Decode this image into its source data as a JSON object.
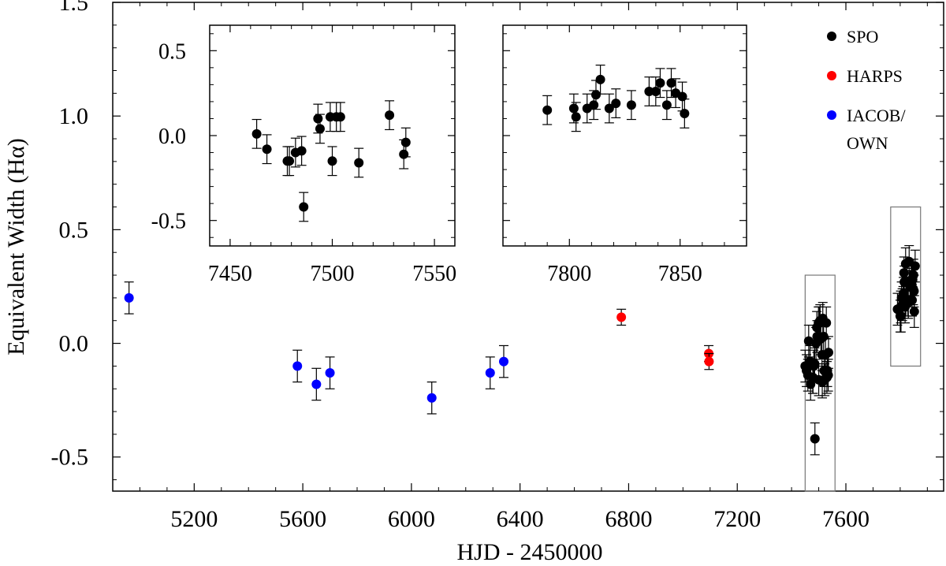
{
  "chart_data": [
    {
      "id": "main",
      "type": "scatter",
      "xlabel": "HJD - 2450000",
      "ylabel": "Equivalent Width (Hα)",
      "xlim": [
        4900,
        7960
      ],
      "ylim": [
        -0.65,
        1.5
      ],
      "xticks": [
        5200,
        5600,
        6000,
        6400,
        6800,
        7200,
        7600
      ],
      "yticks": [
        -0.5,
        0.0,
        0.5,
        1.0,
        1.5
      ],
      "ytick_labels": [
        "-0.5",
        "0.0",
        "0.5",
        "1.0",
        "1.5"
      ],
      "grid": false,
      "legend": {
        "position": "top-right",
        "entries": [
          {
            "label": "SPO",
            "color": "#000000"
          },
          {
            "label": "HARPS",
            "color": "#ff0000"
          },
          {
            "label": "IACOB/\nOWN",
            "color": "#0000ff"
          }
        ]
      },
      "series": [
        {
          "name": "SPO",
          "color": "#000000",
          "x": [
            7463,
            7468,
            7478,
            7479,
            7482,
            7485,
            7486,
            7493,
            7494,
            7499,
            7500,
            7502,
            7504,
            7513,
            7528,
            7535,
            7536,
            7450,
            7455,
            7460,
            7505,
            7508,
            7512,
            7515,
            7520,
            7525,
            7530,
            7470,
            7490,
            7518,
            7522,
            7532,
            7790,
            7802,
            7803,
            7808,
            7811,
            7812,
            7814,
            7818,
            7821,
            7828,
            7836,
            7839,
            7841,
            7844,
            7846,
            7848,
            7851,
            7852,
            7800,
            7805,
            7815,
            7820,
            7825,
            7830,
            7833,
            7842,
            7849,
            7855
          ],
          "y": [
            0.01,
            -0.08,
            -0.15,
            -0.15,
            -0.1,
            -0.09,
            -0.42,
            0.07,
            0.03,
            0.09,
            -0.16,
            0.09,
            0.09,
            -0.17,
            0.09,
            -0.14,
            -0.04,
            -0.1,
            -0.12,
            -0.14,
            0.1,
            0.02,
            -0.05,
            0.11,
            -0.12,
            -0.05,
            -0.15,
            -0.18,
            0.0,
            0.03,
            -0.16,
            -0.12,
            0.15,
            0.16,
            0.12,
            0.17,
            0.18,
            0.22,
            0.31,
            0.16,
            0.19,
            0.19,
            0.25,
            0.25,
            0.28,
            0.19,
            0.28,
            0.24,
            0.23,
            0.14,
            0.12,
            0.2,
            0.27,
            0.35,
            0.27,
            0.18,
            0.36,
            0.26,
            0.3,
            0.34
          ],
          "yerr": 0.07
        },
        {
          "name": "HARPS",
          "color": "#ff0000",
          "x": [
            6773,
            7095,
            7096
          ],
          "y": [
            0.115,
            -0.045,
            -0.08
          ],
          "yerr": 0.035
        },
        {
          "name": "IACOB/\nOWN",
          "color": "#0000ff",
          "x": [
            4960,
            5580,
            5650,
            5700,
            6075,
            6290,
            6340
          ],
          "y": [
            0.2,
            -0.1,
            -0.18,
            -0.13,
            -0.24,
            -0.13,
            -0.08
          ],
          "yerr": 0.07
        }
      ],
      "highlight_boxes": [
        {
          "xlim": [
            7450,
            7560
          ],
          "ylim": [
            -0.65,
            0.3
          ]
        },
        {
          "xlim": [
            7765,
            7875
          ],
          "ylim": [
            -0.1,
            0.6
          ]
        }
      ]
    },
    {
      "id": "inset-left",
      "type": "scatter",
      "xlim": [
        7440,
        7560
      ],
      "ylim": [
        -0.65,
        0.65
      ],
      "xticks": [
        7450,
        7500,
        7550
      ],
      "yticks": [
        -0.5,
        0.0,
        0.5
      ],
      "ytick_labels": [
        "-0.5",
        "0.0",
        "0.5"
      ],
      "series": [
        {
          "name": "SPO",
          "color": "#000000",
          "x": [
            7463,
            7468,
            7478,
            7479,
            7482,
            7485,
            7486,
            7493,
            7494,
            7499,
            7500,
            7502,
            7504,
            7513,
            7528,
            7535,
            7536
          ],
          "y": [
            0.01,
            -0.08,
            -0.15,
            -0.15,
            -0.1,
            -0.09,
            -0.42,
            0.1,
            0.04,
            0.11,
            -0.15,
            0.11,
            0.11,
            -0.16,
            0.12,
            -0.11,
            -0.04
          ],
          "yerr": 0.085
        }
      ]
    },
    {
      "id": "inset-right",
      "type": "scatter",
      "xlim": [
        7770,
        7880
      ],
      "ylim": [
        -0.65,
        0.65
      ],
      "xticks": [
        7800,
        7850
      ],
      "series": [
        {
          "name": "SPO",
          "color": "#000000",
          "x": [
            7790,
            7802,
            7803,
            7808,
            7811,
            7812,
            7814,
            7818,
            7821,
            7828,
            7836,
            7839,
            7841,
            7844,
            7846,
            7848,
            7851,
            7852
          ],
          "y": [
            0.15,
            0.16,
            0.11,
            0.16,
            0.18,
            0.24,
            0.33,
            0.16,
            0.19,
            0.18,
            0.26,
            0.26,
            0.31,
            0.18,
            0.31,
            0.25,
            0.23,
            0.13
          ],
          "yerr": 0.085
        }
      ]
    }
  ]
}
